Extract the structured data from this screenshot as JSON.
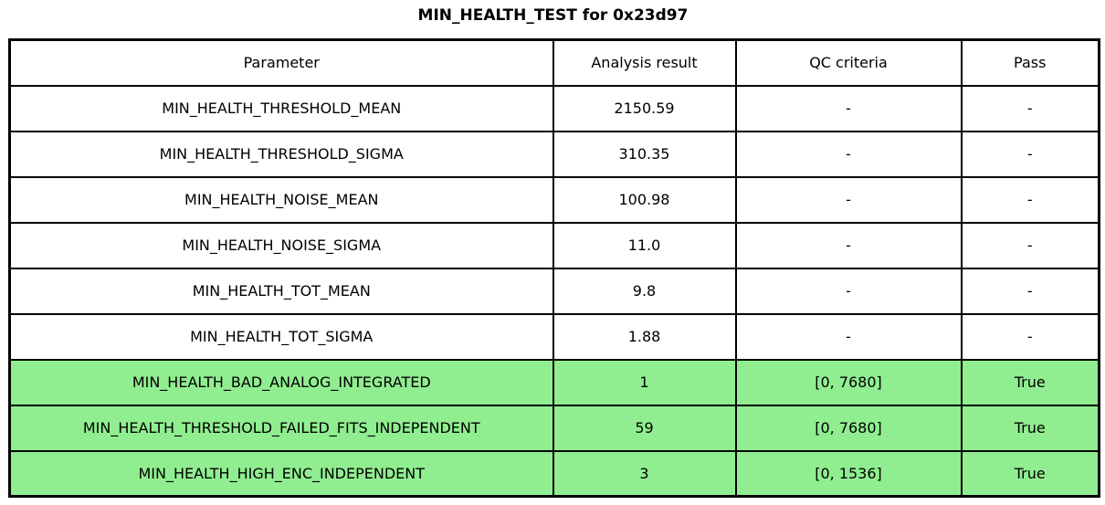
{
  "title": "MIN_HEALTH_TEST for 0x23d97",
  "colors": {
    "pass_green": "#90EE90",
    "border": "#000000",
    "background": "#FFFFFF",
    "text": "#000000"
  },
  "table": {
    "headers": [
      "Parameter",
      "Analysis result",
      "QC criteria",
      "Pass"
    ],
    "rows": [
      {
        "parameter": "MIN_HEALTH_THRESHOLD_MEAN",
        "result": "2150.59",
        "qc": "-",
        "pass": "-",
        "highlight": false
      },
      {
        "parameter": "MIN_HEALTH_THRESHOLD_SIGMA",
        "result": "310.35",
        "qc": "-",
        "pass": "-",
        "highlight": false
      },
      {
        "parameter": "MIN_HEALTH_NOISE_MEAN",
        "result": "100.98",
        "qc": "-",
        "pass": "-",
        "highlight": false
      },
      {
        "parameter": "MIN_HEALTH_NOISE_SIGMA",
        "result": "11.0",
        "qc": "-",
        "pass": "-",
        "highlight": false
      },
      {
        "parameter": "MIN_HEALTH_TOT_MEAN",
        "result": "9.8",
        "qc": "-",
        "pass": "-",
        "highlight": false
      },
      {
        "parameter": "MIN_HEALTH_TOT_SIGMA",
        "result": "1.88",
        "qc": "-",
        "pass": "-",
        "highlight": false
      },
      {
        "parameter": "MIN_HEALTH_BAD_ANALOG_INTEGRATED",
        "result": "1",
        "qc": "[0, 7680]",
        "pass": "True",
        "highlight": true
      },
      {
        "parameter": "MIN_HEALTH_THRESHOLD_FAILED_FITS_INDEPENDENT",
        "result": "59",
        "qc": "[0, 7680]",
        "pass": "True",
        "highlight": true
      },
      {
        "parameter": "MIN_HEALTH_HIGH_ENC_INDEPENDENT",
        "result": "3",
        "qc": "[0, 1536]",
        "pass": "True",
        "highlight": true
      }
    ]
  },
  "chart_data": {
    "type": "table",
    "title": "MIN_HEALTH_TEST for 0x23d97",
    "columns": [
      "Parameter",
      "Analysis result",
      "QC criteria",
      "Pass"
    ],
    "rows": [
      [
        "MIN_HEALTH_THRESHOLD_MEAN",
        "2150.59",
        "-",
        "-"
      ],
      [
        "MIN_HEALTH_THRESHOLD_SIGMA",
        "310.35",
        "-",
        "-"
      ],
      [
        "MIN_HEALTH_NOISE_MEAN",
        "100.98",
        "-",
        "-"
      ],
      [
        "MIN_HEALTH_NOISE_SIGMA",
        "11.0",
        "-",
        "-"
      ],
      [
        "MIN_HEALTH_TOT_MEAN",
        "9.8",
        "-",
        "-"
      ],
      [
        "MIN_HEALTH_TOT_SIGMA",
        "1.88",
        "-",
        "-"
      ],
      [
        "MIN_HEALTH_BAD_ANALOG_INTEGRATED",
        "1",
        "[0, 7680]",
        "True"
      ],
      [
        "MIN_HEALTH_THRESHOLD_FAILED_FITS_INDEPENDENT",
        "59",
        "[0, 7680]",
        "True"
      ],
      [
        "MIN_HEALTH_HIGH_ENC_INDEPENDENT",
        "3",
        "[0, 1536]",
        "True"
      ]
    ],
    "highlighted_rows": [
      6,
      7,
      8
    ],
    "highlight_color": "#90EE90",
    "layout": "grid lines on, all cells center-aligned, bold centered title above table"
  }
}
